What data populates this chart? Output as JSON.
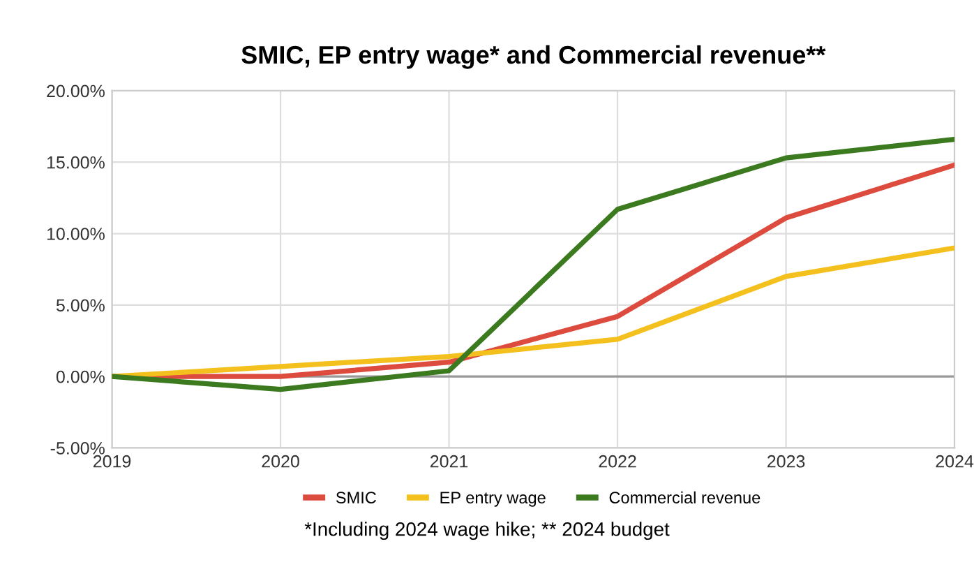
{
  "chart_data": {
    "type": "line",
    "title": "SMIC, EP entry wage* and Commercial revenue**",
    "x": [
      2019,
      2020,
      2021,
      2022,
      2023,
      2024
    ],
    "series": [
      {
        "name": "SMIC",
        "color": "#dc4b3e",
        "values": [
          0,
          0.0,
          1.0,
          4.2,
          11.1,
          14.8
        ]
      },
      {
        "name": "EP entry wage",
        "color": "#f4c01e",
        "values": [
          0,
          0.7,
          1.4,
          2.6,
          7.0,
          9.0
        ]
      },
      {
        "name": "Commercial revenue",
        "color": "#3b7a1f",
        "values": [
          0,
          -0.9,
          0.4,
          11.7,
          15.3,
          16.6
        ]
      }
    ],
    "xlim": [
      2019,
      2024
    ],
    "xticks": [
      2019,
      2020,
      2021,
      2022,
      2023,
      2024
    ],
    "ylim": [
      -5,
      20
    ],
    "yticks": [
      {
        "value": -5,
        "label": "-5.00%"
      },
      {
        "value": 0,
        "label": "0.00%"
      },
      {
        "value": 5,
        "label": "5.00%"
      },
      {
        "value": 10,
        "label": "10.00%"
      },
      {
        "value": 15,
        "label": "15.00%"
      },
      {
        "value": 20,
        "label": "20.00%"
      }
    ],
    "ref_lines": [
      {
        "axis": "y",
        "value": 0,
        "label": null,
        "color": "#999999"
      }
    ],
    "grid": true,
    "legend": "bottom",
    "marker": "none",
    "line_style": "solid",
    "annotations": [
      "*Including 2024 wage hike; ** 2024 budget"
    ]
  }
}
